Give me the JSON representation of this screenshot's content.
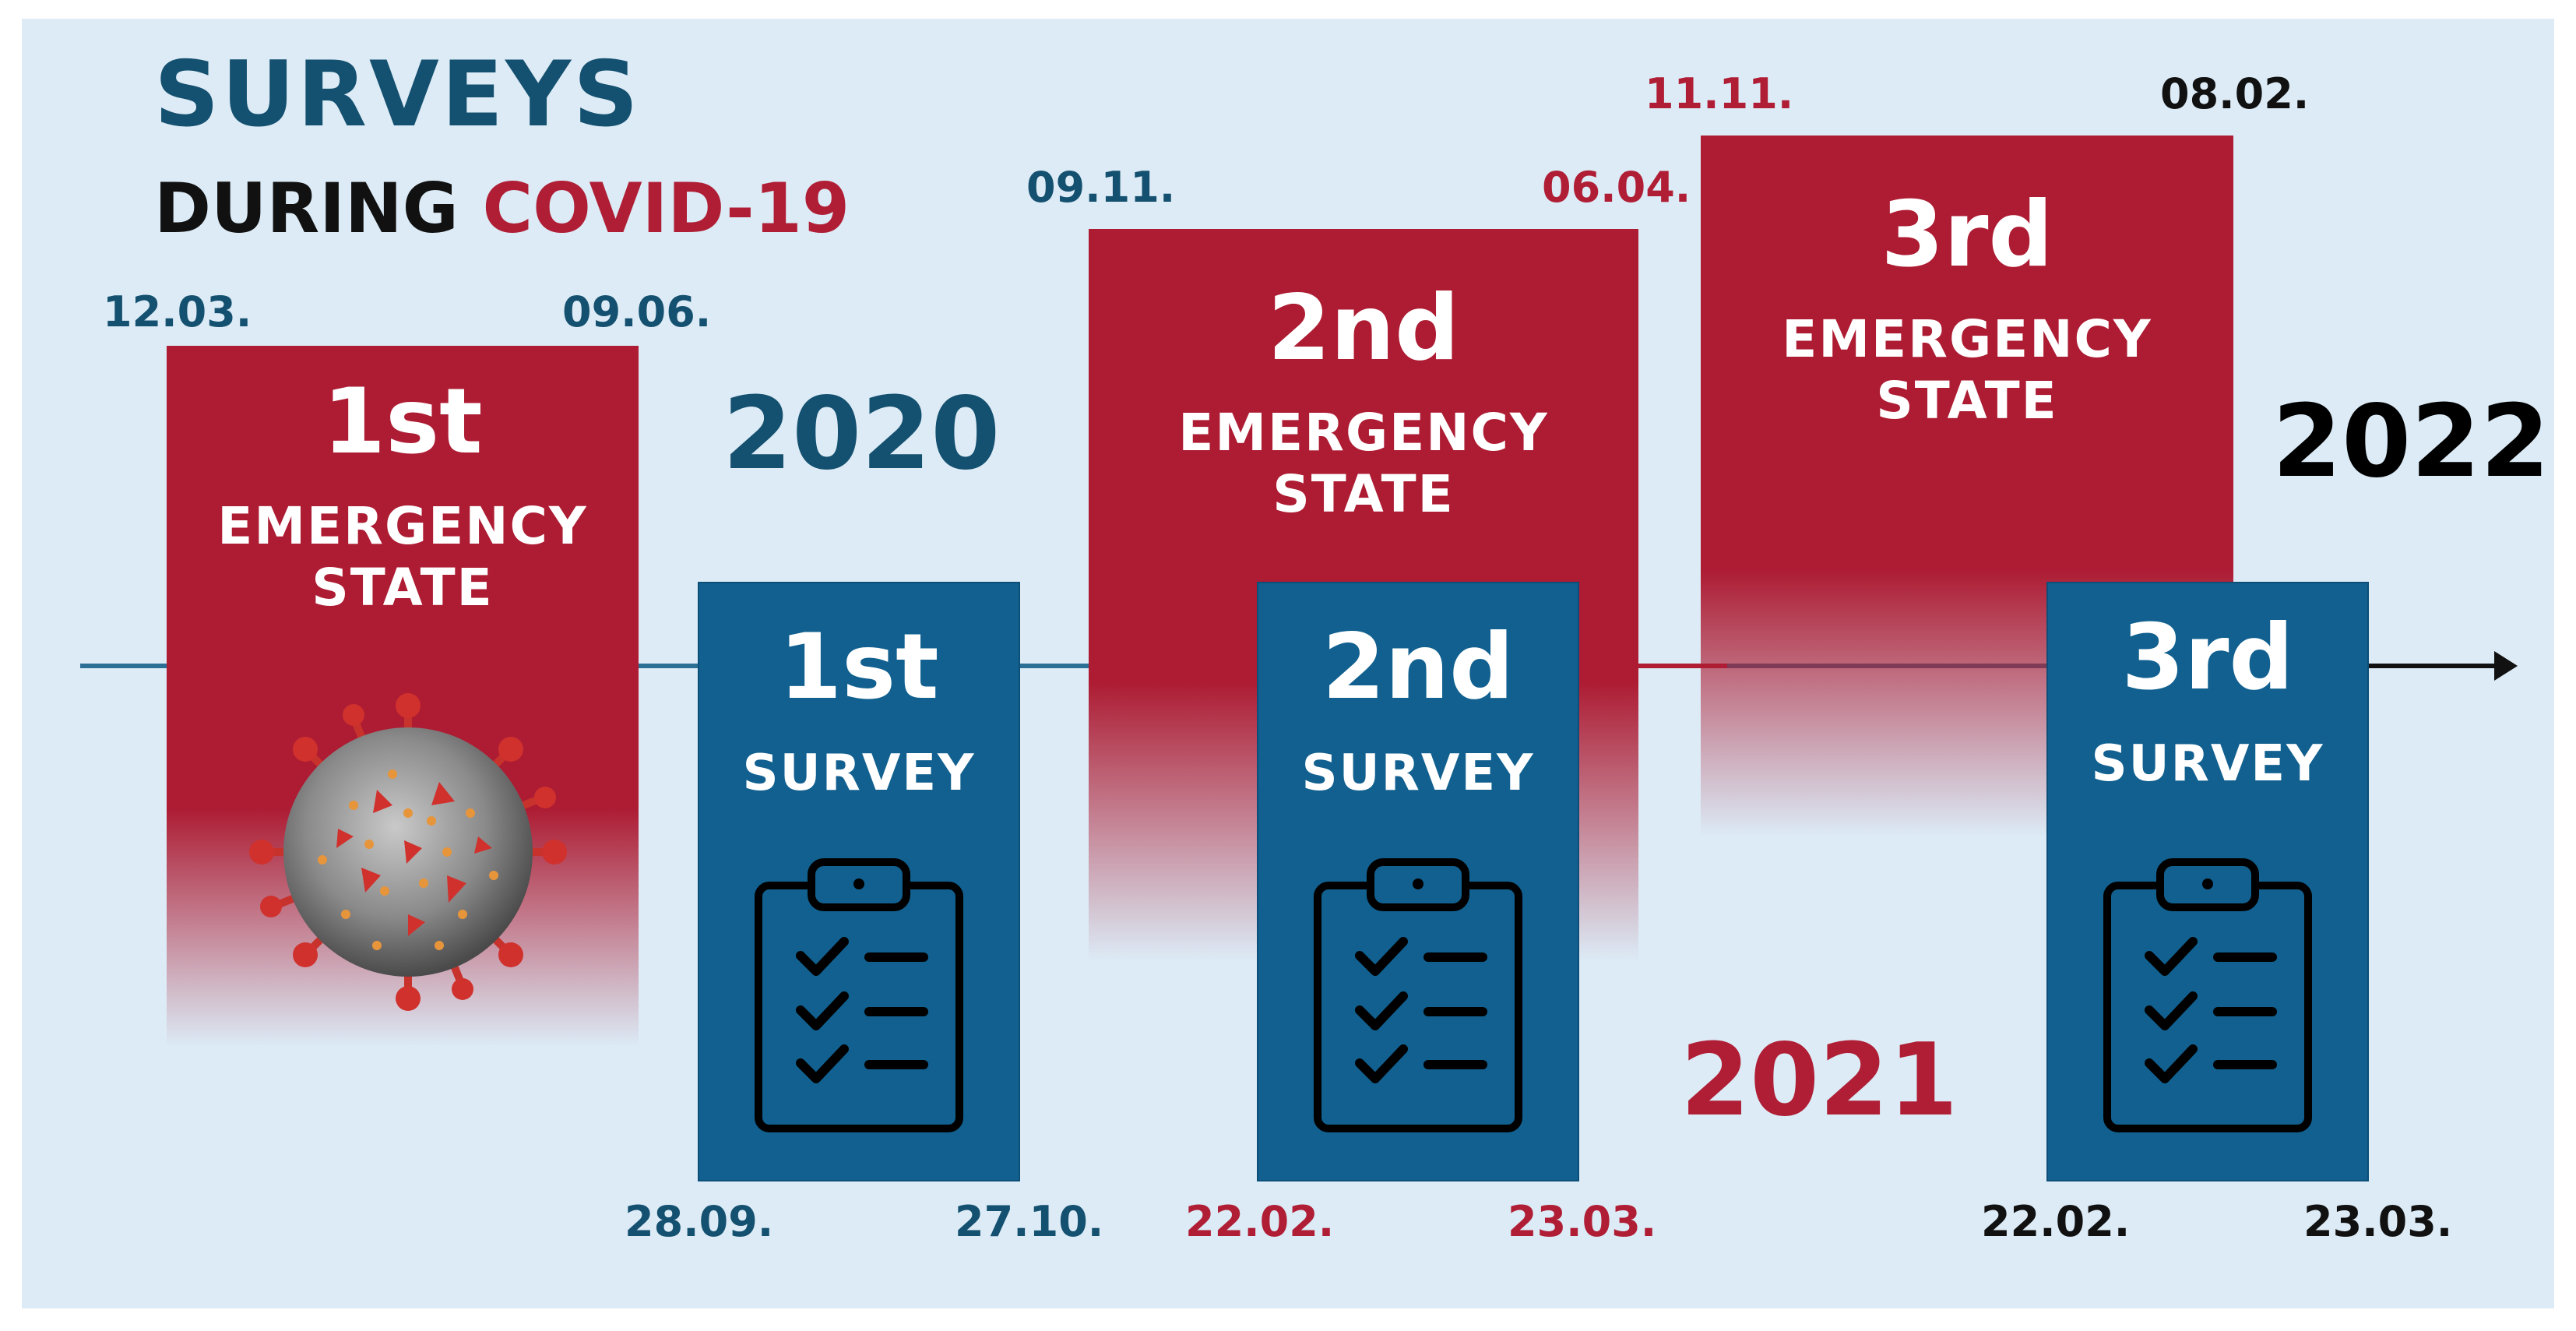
{
  "title": {
    "line1": "SURVEYS",
    "line2_prefix": "DURING ",
    "line2_highlight": "COVID-19"
  },
  "years": {
    "y2020": "2020",
    "y2021": "2021",
    "y2022": "2022"
  },
  "colors": {
    "emergency_red": "#ad1c33",
    "survey_blue": "#11608f",
    "title_blue": "#14506f",
    "background": "#dcebf6"
  },
  "emergency_states": [
    {
      "ordinal": "1st",
      "label_line1": "EMERGENCY",
      "label_line2": "STATE",
      "start": "12.03.",
      "end": "09.06."
    },
    {
      "ordinal": "2nd",
      "label_line1": "EMERGENCY",
      "label_line2": "STATE",
      "start": "09.11.",
      "end": "06.04."
    },
    {
      "ordinal": "3rd",
      "label_line1": "EMERGENCY",
      "label_line2": "STATE",
      "start": "11.11.",
      "end": "08.02."
    }
  ],
  "surveys": [
    {
      "ordinal": "1st",
      "label": "SURVEY",
      "start": "28.09.",
      "end": "27.10.",
      "icon": "clipboard-checklist-icon"
    },
    {
      "ordinal": "2nd",
      "label": "SURVEY",
      "start": "22.02.",
      "end": "23.03.",
      "icon": "clipboard-checklist-icon"
    },
    {
      "ordinal": "3rd",
      "label": "SURVEY",
      "start": "22.02.",
      "end": "23.03.",
      "icon": "clipboard-checklist-icon"
    }
  ],
  "decorations": {
    "virus_icon": "coronavirus-icon",
    "arrow": "timeline-arrow-icon"
  }
}
